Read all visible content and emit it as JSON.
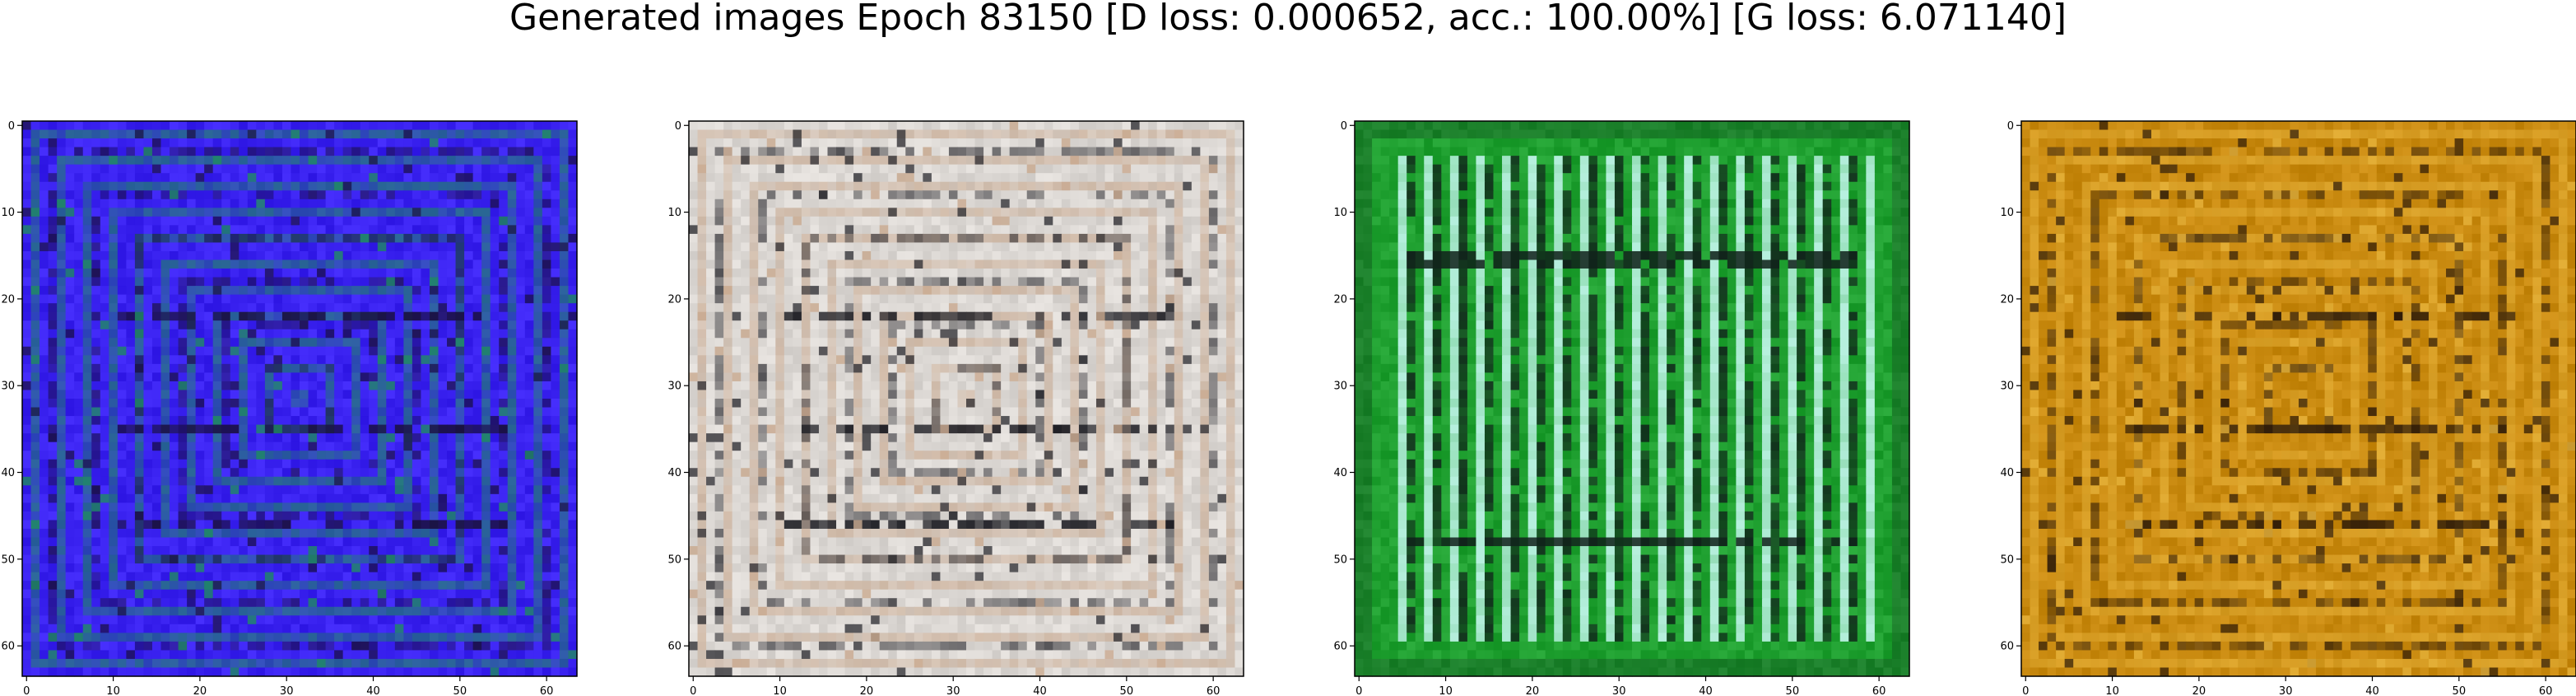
{
  "figure": {
    "title": "Generated images Epoch 83150 [D loss: 0.000652, acc.: 100.00%] [G loss: 6.071140]"
  },
  "chart_data": [
    {
      "type": "heatmap",
      "title": "",
      "xlabel": "",
      "ylabel": "",
      "xlim": [
        -0.5,
        63.5
      ],
      "ylim": [
        63.5,
        -0.5
      ],
      "x_ticks": [
        0,
        10,
        20,
        30,
        40,
        50,
        60
      ],
      "y_ticks": [
        0,
        10,
        20,
        30,
        40,
        50,
        60
      ],
      "grid": false,
      "colormap": "rgb",
      "dominant_color": "#3a22f0",
      "accent_color": "#1f8a62",
      "dark_color": "#1a1040",
      "pattern": "nested-rectangles"
    },
    {
      "type": "heatmap",
      "title": "",
      "xlabel": "",
      "ylabel": "",
      "xlim": [
        -0.5,
        63.5
      ],
      "ylim": [
        63.5,
        -0.5
      ],
      "x_ticks": [
        0,
        10,
        20,
        30,
        40,
        50,
        60
      ],
      "y_ticks": [
        0,
        10,
        20,
        30,
        40,
        50,
        60
      ],
      "grid": false,
      "colormap": "rgb",
      "dominant_color": "#dcd8d4",
      "accent_color": "#c9a98f",
      "dark_color": "#1c1c22",
      "pattern": "nested-rectangles"
    },
    {
      "type": "heatmap",
      "title": "",
      "xlabel": "",
      "ylabel": "",
      "xlim": [
        -0.5,
        63.5
      ],
      "ylim": [
        63.5,
        -0.5
      ],
      "x_ticks": [
        0,
        10,
        20,
        30,
        40,
        50,
        60
      ],
      "y_ticks": [
        0,
        10,
        20,
        30,
        40,
        50,
        60
      ],
      "grid": false,
      "colormap": "rgb",
      "dominant_color": "#1fa030",
      "accent_color": "#bff4e8",
      "dark_color": "#10201a",
      "pattern": "vertical-stripes"
    },
    {
      "type": "heatmap",
      "title": "",
      "xlabel": "",
      "ylabel": "",
      "xlim": [
        -0.5,
        63.5
      ],
      "ylim": [
        63.5,
        -0.5
      ],
      "x_ticks": [
        0,
        10,
        20,
        30,
        40,
        50,
        60
      ],
      "y_ticks": [
        0,
        10,
        20,
        30,
        40,
        50,
        60
      ],
      "grid": false,
      "colormap": "rgb",
      "dominant_color": "#c98a10",
      "accent_color": "#e6b23a",
      "dark_color": "#2a1808",
      "pattern": "nested-rectangles"
    }
  ]
}
